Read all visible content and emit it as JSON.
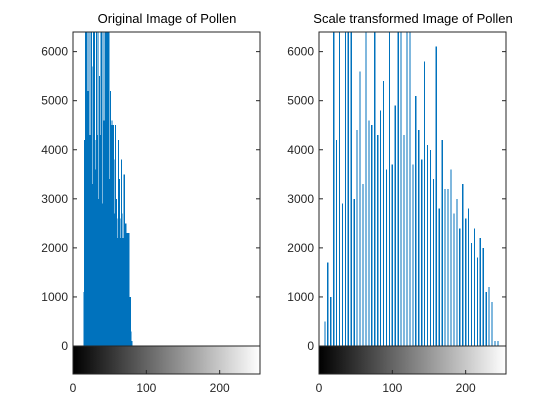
{
  "chart_data": [
    {
      "type": "bar",
      "title": "Original Image of Pollen",
      "xlabel": "",
      "ylabel": "",
      "xlim": [
        0,
        255
      ],
      "ylim": [
        0,
        6400
      ],
      "x_ticks": [
        0,
        100,
        200
      ],
      "y_ticks": [
        0,
        1000,
        2000,
        3000,
        4000,
        5000,
        6000
      ],
      "grid": false,
      "colorbar": "gray ramp 0-255 beneath x-axis",
      "bar_color": "#0072BD",
      "x": [
        15,
        16,
        17,
        18,
        19,
        20,
        21,
        22,
        23,
        24,
        25,
        26,
        27,
        28,
        29,
        30,
        31,
        32,
        33,
        34,
        35,
        36,
        37,
        38,
        39,
        40,
        41,
        42,
        43,
        44,
        45,
        46,
        47,
        48,
        49,
        50,
        51,
        52,
        53,
        54,
        55,
        56,
        57,
        58,
        59,
        60,
        61,
        62,
        63,
        64,
        65,
        66,
        67,
        68,
        69,
        70,
        71,
        72,
        73,
        74,
        75,
        76,
        77,
        78,
        79,
        80
      ],
      "values": [
        1100,
        4200,
        6400,
        6400,
        6400,
        5200,
        3900,
        6400,
        4300,
        2800,
        6400,
        5700,
        3300,
        6400,
        6400,
        4200,
        3600,
        6400,
        4300,
        6400,
        3000,
        5500,
        4300,
        6400,
        6400,
        2900,
        6400,
        4600,
        3200,
        6400,
        4000,
        6400,
        3800,
        6400,
        6400,
        3400,
        5200,
        4500,
        4600,
        3400,
        4500,
        3800,
        2700,
        4500,
        3000,
        2600,
        2200,
        4200,
        3400,
        2600,
        2200,
        3800,
        2700,
        2200,
        2100,
        3500,
        1900,
        2500,
        1700,
        2300,
        1300,
        2300,
        900,
        1000,
        300,
        100
      ]
    },
    {
      "type": "bar",
      "title": "Scale transformed Image of Pollen",
      "xlabel": "",
      "ylabel": "",
      "xlim": [
        0,
        255
      ],
      "ylim": [
        0,
        6400
      ],
      "x_ticks": [
        0,
        100,
        200
      ],
      "y_ticks": [
        0,
        1000,
        2000,
        3000,
        4000,
        5000,
        6000
      ],
      "grid": false,
      "colorbar": "gray ramp 0-255 beneath x-axis",
      "bar_color": "#0072BD",
      "x": [
        8,
        12,
        16,
        20,
        24,
        28,
        32,
        36,
        40,
        44,
        48,
        52,
        56,
        60,
        64,
        68,
        72,
        76,
        80,
        84,
        88,
        92,
        96,
        100,
        104,
        108,
        112,
        116,
        120,
        124,
        128,
        132,
        136,
        140,
        144,
        148,
        152,
        156,
        160,
        164,
        168,
        172,
        176,
        180,
        184,
        188,
        192,
        196,
        200,
        204,
        208,
        212,
        216,
        220,
        224,
        228,
        232,
        236,
        240,
        244
      ],
      "values": [
        500,
        1700,
        1000,
        6400,
        4200,
        6400,
        2900,
        6400,
        6400,
        6400,
        3000,
        4400,
        5600,
        3300,
        6400,
        4600,
        4500,
        6400,
        4300,
        4800,
        5400,
        3600,
        6400,
        3700,
        4900,
        6400,
        6400,
        4300,
        6400,
        6400,
        3700,
        5100,
        4400,
        3800,
        5800,
        4100,
        4000,
        3400,
        6100,
        2800,
        4200,
        3200,
        3200,
        3600,
        2700,
        3000,
        2400,
        3300,
        2600,
        2800,
        2100,
        2400,
        1800,
        2200,
        2000,
        1100,
        1200,
        900,
        100,
        100
      ]
    }
  ]
}
